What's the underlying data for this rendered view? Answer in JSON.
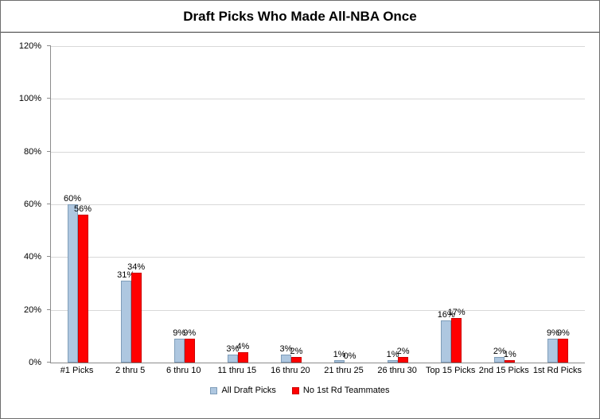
{
  "chart_data": {
    "type": "bar",
    "title": "Draft Picks Who Made All-NBA Once",
    "categories": [
      "#1 Picks",
      "2 thru 5",
      "6 thru 10",
      "11 thru 15",
      "16 thru 20",
      "21 thru 25",
      "26 thru 30",
      "Top 15 Picks",
      "2nd 15 Picks",
      "1st Rd Picks"
    ],
    "series": [
      {
        "name": "All Draft Picks",
        "color": "#aec7e0",
        "border": "#7f9db9",
        "values": [
          60,
          31,
          9,
          3,
          3,
          1,
          1,
          16,
          2,
          9
        ]
      },
      {
        "name": "No 1st Rd Teammates",
        "color": "#ff0000",
        "border": "#cc0000",
        "values": [
          56,
          34,
          9,
          4,
          2,
          0,
          2,
          17,
          1,
          9
        ]
      }
    ],
    "ylim": [
      0,
      120
    ],
    "ytick_step": 20,
    "ytick_labels": [
      "0%",
      "20%",
      "40%",
      "60%",
      "80%",
      "100%",
      "120%"
    ],
    "value_suffix": "%",
    "grid": true,
    "legend_position": "bottom"
  }
}
